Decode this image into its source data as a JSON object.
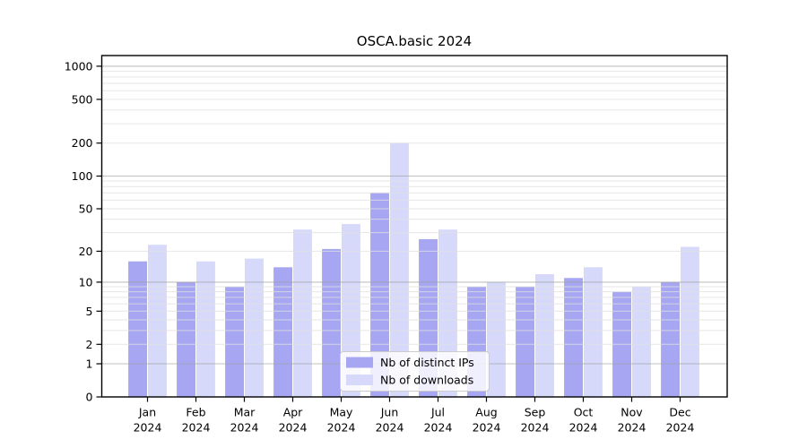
{
  "title": "OSCA.basic 2024",
  "chart_data": {
    "type": "bar",
    "title": "OSCA.basic 2024",
    "categories": [
      "Jan",
      "Feb",
      "Mar",
      "Apr",
      "May",
      "Jun",
      "Jul",
      "Aug",
      "Sep",
      "Oct",
      "Nov",
      "Dec"
    ],
    "category_year": "2024",
    "series": [
      {
        "name": "Nb of distinct IPs",
        "color": "#a6a6f2",
        "values": [
          16,
          10,
          9,
          14,
          21,
          70,
          26,
          9,
          9,
          11,
          8,
          10
        ]
      },
      {
        "name": "Nb of downloads",
        "color": "#d7d9fa",
        "values": [
          23,
          16,
          17,
          32,
          36,
          200,
          32,
          10,
          12,
          14,
          9,
          22
        ]
      }
    ],
    "yscale": "log1p",
    "ylim": [
      0,
      1000
    ],
    "yticks": [
      0,
      1,
      2,
      5,
      10,
      20,
      50,
      100,
      200,
      500,
      1000
    ],
    "grid": {
      "major_lines": [
        1,
        10,
        100,
        1000
      ],
      "minor_decades": [
        1,
        10,
        100
      ],
      "minor_multiples": [
        2,
        3,
        4,
        5,
        6,
        7,
        8,
        9
      ],
      "major_color": "#9e9e9e",
      "minor_color": "#e0e0e0"
    },
    "xlabel": "",
    "ylabel": "",
    "legend_position": "lower center",
    "axis_color": "#000000",
    "background_color": "#ffffff"
  }
}
